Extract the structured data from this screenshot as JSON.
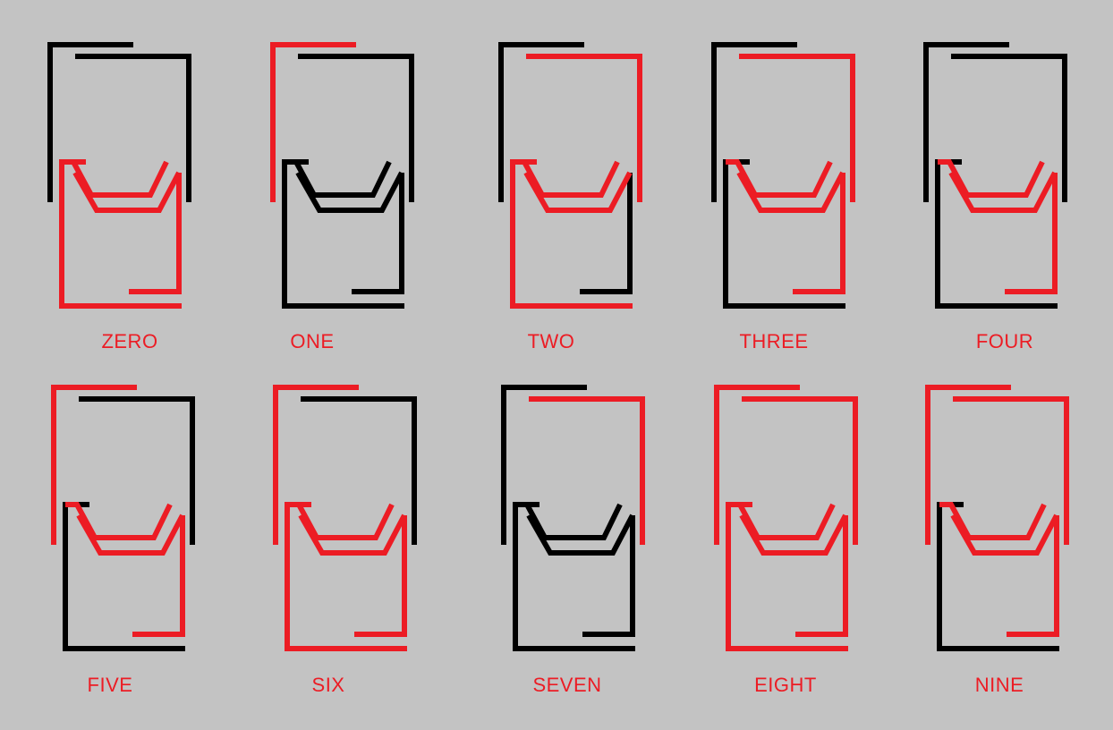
{
  "colors": {
    "background": "#c3c3c3",
    "on": "#ec1c24",
    "off": "#000000"
  },
  "segment_names": [
    "upper-left",
    "upper-right",
    "bowl",
    "lower-left",
    "lower-right"
  ],
  "digits": [
    {
      "label": "ZERO",
      "on": [
        "bowl",
        "lower-left",
        "lower-right"
      ]
    },
    {
      "label": "ONE",
      "on": [
        "upper-left"
      ]
    },
    {
      "label": "TWO",
      "on": [
        "upper-right",
        "bowl",
        "lower-left"
      ]
    },
    {
      "label": "THREE",
      "on": [
        "upper-right",
        "bowl",
        "lower-right"
      ]
    },
    {
      "label": "FOUR",
      "on": [
        "bowl",
        "lower-right"
      ]
    },
    {
      "label": "FIVE",
      "on": [
        "upper-left",
        "bowl",
        "lower-right"
      ]
    },
    {
      "label": "SIX",
      "on": [
        "upper-left",
        "bowl",
        "lower-left",
        "lower-right"
      ]
    },
    {
      "label": "SEVEN",
      "on": [
        "upper-right"
      ]
    },
    {
      "label": "EIGHT",
      "on": [
        "upper-left",
        "upper-right",
        "bowl",
        "lower-left",
        "lower-right"
      ]
    },
    {
      "label": "NINE",
      "on": [
        "upper-left",
        "upper-right",
        "bowl",
        "lower-right"
      ]
    }
  ]
}
